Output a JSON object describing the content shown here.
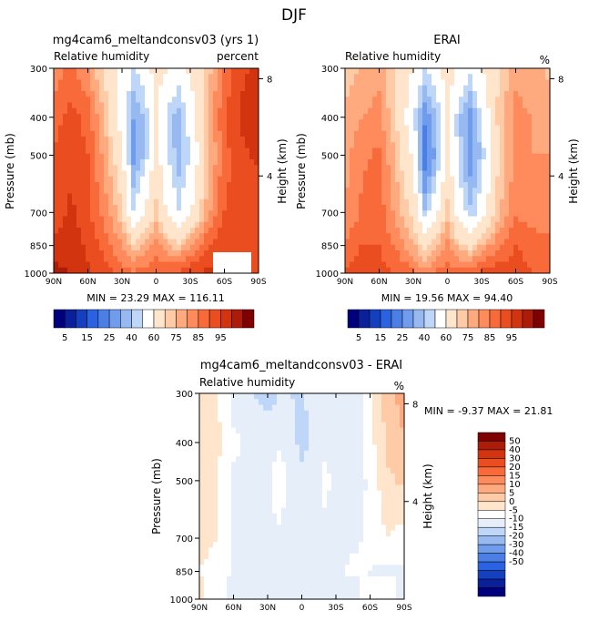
{
  "suptitle": "DJF",
  "palette_abs": [
    "#00007f",
    "#0a1f9a",
    "#1440c0",
    "#2b62e2",
    "#4c7fe6",
    "#6f9cec",
    "#97b9f2",
    "#bed6f8",
    "#ffffff",
    "#ffe5cc",
    "#ffcaa6",
    "#ffa97f",
    "#ff8a5c",
    "#f96a3a",
    "#ea4d20",
    "#d23410",
    "#ad1c08",
    "#7f0000"
  ],
  "palette_diff": [
    "#00007f",
    "#0a1f9a",
    "#1440c0",
    "#2b62e2",
    "#4c7fe6",
    "#6f9cec",
    "#97b9f2",
    "#bed6f8",
    "#e6eefa",
    "#ffffff",
    "#ffe5cc",
    "#ffcaa6",
    "#ffa97f",
    "#ff8a5c",
    "#f96a3a",
    "#ea4d20",
    "#d23410",
    "#ad1c08",
    "#7f0000"
  ],
  "chart_data": [
    {
      "type": "heatmap",
      "title": "mg4cam6_meltandconsv03 (yrs 1)",
      "subtitle_left": "Relative humidity",
      "subtitle_right": "percent",
      "xlabel": "",
      "ylabel": "Pressure (mb)",
      "ylabel_right": "Height (km)",
      "x_ticks": [
        "90N",
        "60N",
        "30N",
        "0",
        "30S",
        "60S",
        "90S"
      ],
      "y_ticks": [
        "300",
        "400",
        "500",
        "700",
        "850",
        "1000"
      ],
      "y_ticks_right": [
        "8",
        "4"
      ],
      "minmax_label": "MIN =  23.29   MAX = 116.11",
      "min": 23.29,
      "max": 116.11,
      "colorbar_labels": [
        "5",
        "15",
        "25",
        "40",
        "60",
        "75",
        "85",
        "95"
      ],
      "lat": [
        90,
        75,
        60,
        45,
        30,
        20,
        10,
        0,
        -10,
        -20,
        -30,
        -45,
        -60,
        -75,
        -90
      ],
      "pressure": [
        300,
        400,
        500,
        700,
        850,
        1000
      ],
      "values": [
        [
          72,
          76,
          70,
          58,
          48,
          40,
          44,
          55,
          50,
          45,
          52,
          62,
          76,
          84,
          86
        ],
        [
          78,
          82,
          78,
          64,
          45,
          30,
          36,
          50,
          38,
          32,
          44,
          64,
          80,
          86,
          88
        ],
        [
          80,
          84,
          80,
          68,
          52,
          28,
          36,
          54,
          40,
          32,
          40,
          62,
          78,
          84,
          86
        ],
        [
          82,
          86,
          82,
          72,
          62,
          40,
          50,
          62,
          48,
          40,
          48,
          68,
          80,
          82,
          80
        ],
        [
          86,
          88,
          84,
          78,
          70,
          62,
          66,
          72,
          66,
          62,
          70,
          80,
          85,
          82,
          80
        ],
        [
          92,
          90,
          86,
          82,
          78,
          76,
          78,
          80,
          80,
          82,
          84,
          86,
          84,
          82,
          80
        ]
      ]
    },
    {
      "type": "heatmap",
      "title": "ERAI",
      "subtitle_left": "Relative humidity",
      "subtitle_right": "%",
      "xlabel": "",
      "ylabel": "Pressure (mb)",
      "ylabel_right": "Height (km)",
      "x_ticks": [
        "90N",
        "60N",
        "30N",
        "0",
        "30S",
        "60S",
        "90S"
      ],
      "y_ticks": [
        "300",
        "400",
        "500",
        "700",
        "850",
        "1000"
      ],
      "y_ticks_right": [
        "8",
        "4"
      ],
      "minmax_label": "MIN =  19.56   MAX =  94.40",
      "min": 19.56,
      "max": 94.4,
      "colorbar_labels": [
        "5",
        "15",
        "25",
        "40",
        "60",
        "75",
        "85",
        "95"
      ],
      "lat": [
        90,
        75,
        60,
        45,
        30,
        20,
        10,
        0,
        -10,
        -20,
        -30,
        -45,
        -60,
        -75,
        -90
      ],
      "pressure": [
        300,
        400,
        500,
        700,
        850,
        1000
      ],
      "values": [
        [
          62,
          66,
          68,
          58,
          50,
          40,
          44,
          56,
          48,
          42,
          50,
          60,
          68,
          66,
          64
        ],
        [
          66,
          70,
          72,
          60,
          42,
          26,
          34,
          52,
          36,
          28,
          40,
          62,
          72,
          70,
          68
        ],
        [
          68,
          74,
          76,
          64,
          48,
          20,
          32,
          52,
          38,
          26,
          36,
          60,
          72,
          70,
          70
        ],
        [
          70,
          76,
          78,
          68,
          58,
          36,
          48,
          62,
          46,
          36,
          44,
          64,
          74,
          72,
          72
        ],
        [
          76,
          80,
          80,
          74,
          66,
          58,
          64,
          72,
          62,
          58,
          66,
          74,
          80,
          78,
          76
        ],
        [
          80,
          84,
          82,
          80,
          76,
          72,
          76,
          78,
          78,
          80,
          82,
          84,
          82,
          80,
          78
        ]
      ]
    },
    {
      "type": "heatmap",
      "title": "mg4cam6_meltandconsv03 - ERAI",
      "subtitle_left": "Relative humidity",
      "subtitle_right": "%",
      "xlabel": "",
      "ylabel": "Pressure (mb)",
      "ylabel_right": "Height (km)",
      "x_ticks": [
        "90N",
        "60N",
        "30N",
        "0",
        "30S",
        "60S",
        "90S"
      ],
      "y_ticks": [
        "300",
        "400",
        "500",
        "700",
        "850",
        "1000"
      ],
      "y_ticks_right": [
        "8",
        "4"
      ],
      "minmax_label": "MIN =  -9.37   MAX =  21.81",
      "min": -9.37,
      "max": 21.81,
      "colorbar_labels": [
        "50",
        "40",
        "30",
        "20",
        "15",
        "10",
        "5",
        "0",
        "-5",
        "-10",
        "-15",
        "-20",
        "-30",
        "-40",
        "-50"
      ],
      "lat": [
        90,
        75,
        60,
        45,
        30,
        20,
        10,
        0,
        -10,
        -20,
        -30,
        -45,
        -60,
        -75,
        -90
      ],
      "pressure": [
        300,
        400,
        500,
        700,
        850,
        1000
      ],
      "values": [
        [
          10,
          10,
          3,
          0,
          -2,
          0,
          0,
          -1,
          2,
          3,
          2,
          2,
          8,
          18,
          22
        ],
        [
          12,
          12,
          6,
          4,
          3,
          4,
          2,
          -2,
          2,
          4,
          4,
          2,
          8,
          16,
          20
        ],
        [
          12,
          10,
          4,
          4,
          4,
          8,
          4,
          2,
          2,
          6,
          4,
          2,
          6,
          14,
          16
        ],
        [
          12,
          10,
          4,
          4,
          4,
          4,
          2,
          0,
          2,
          4,
          4,
          4,
          6,
          10,
          8
        ],
        [
          10,
          8,
          4,
          4,
          4,
          4,
          2,
          0,
          4,
          4,
          4,
          6,
          5,
          4,
          4
        ],
        [
          12,
          6,
          4,
          2,
          2,
          4,
          2,
          2,
          2,
          2,
          2,
          2,
          2,
          -2,
          2
        ]
      ]
    }
  ]
}
